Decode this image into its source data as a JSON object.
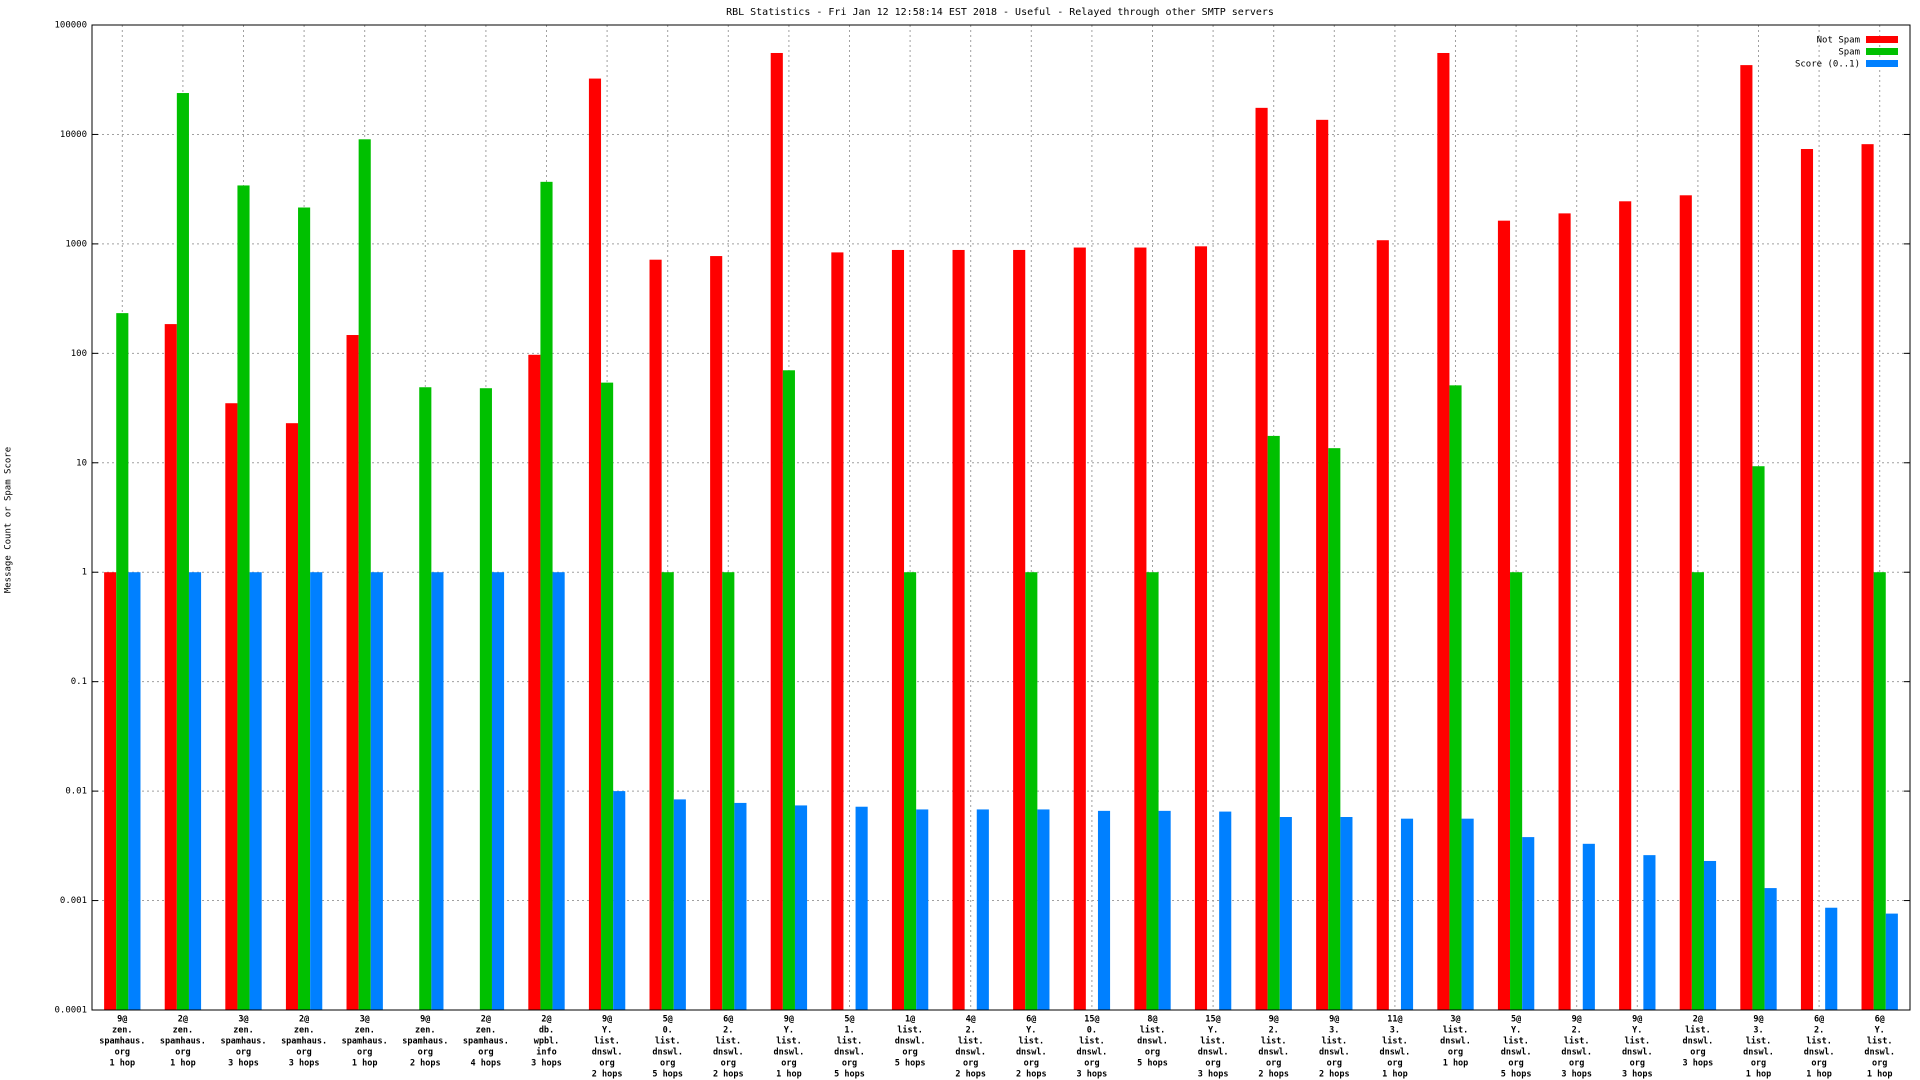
{
  "chart_data": {
    "type": "bar",
    "title": "RBL Statistics - Fri Jan 12 12:58:14 EST 2018 - Useful - Relayed through other SMTP servers",
    "y_label": "Message Count or Spam Score",
    "log_y": true,
    "grid": true,
    "legend": "top-right",
    "ylim": [
      0.0001,
      100000
    ],
    "yticks": [
      0.0001,
      0.001,
      0.01,
      0.1,
      1,
      10,
      100,
      1000,
      10000,
      100000
    ],
    "categories": [
      [
        "9@",
        "zen.",
        "spamhaus.",
        "org",
        "1 hop"
      ],
      [
        "2@",
        "zen.",
        "spamhaus.",
        "org",
        "1 hop"
      ],
      [
        "3@",
        "zen.",
        "spamhaus.",
        "org",
        "3 hops"
      ],
      [
        "2@",
        "zen.",
        "spamhaus.",
        "org",
        "3 hops"
      ],
      [
        "3@",
        "zen.",
        "spamhaus.",
        "org",
        "1 hop"
      ],
      [
        "9@",
        "zen.",
        "spamhaus.",
        "org",
        "2 hops"
      ],
      [
        "2@",
        "zen.",
        "spamhaus.",
        "org",
        "4 hops"
      ],
      [
        "2@",
        "db.",
        "wpbl.",
        "info",
        "3 hops"
      ],
      [
        "9@",
        "Y.",
        "list.",
        "dnswl.",
        "org",
        "2 hops"
      ],
      [
        "5@",
        "0.",
        "list.",
        "dnswl.",
        "org",
        "5 hops"
      ],
      [
        "6@",
        "2.",
        "list.",
        "dnswl.",
        "org",
        "2 hops"
      ],
      [
        "9@",
        "Y.",
        "list.",
        "dnswl.",
        "org",
        "1 hop"
      ],
      [
        "5@",
        "1.",
        "list.",
        "dnswl.",
        "org",
        "5 hops"
      ],
      [
        "1@",
        "list.",
        "dnswl.",
        "org",
        "5 hops"
      ],
      [
        "4@",
        "2.",
        "list.",
        "dnswl.",
        "org",
        "2 hops"
      ],
      [
        "6@",
        "Y.",
        "list.",
        "dnswl.",
        "org",
        "2 hops"
      ],
      [
        "15@",
        "0.",
        "list.",
        "dnswl.",
        "org",
        "3 hops"
      ],
      [
        "8@",
        "list.",
        "dnswl.",
        "org",
        "5 hops"
      ],
      [
        "15@",
        "Y.",
        "list.",
        "dnswl.",
        "org",
        "3 hops"
      ],
      [
        "9@",
        "2.",
        "list.",
        "dnswl.",
        "org",
        "2 hops"
      ],
      [
        "9@",
        "3.",
        "list.",
        "dnswl.",
        "org",
        "2 hops"
      ],
      [
        "11@",
        "3.",
        "list.",
        "dnswl.",
        "org",
        "1 hop"
      ],
      [
        "3@",
        "list.",
        "dnswl.",
        "org",
        "1 hop"
      ],
      [
        "5@",
        "Y.",
        "list.",
        "dnswl.",
        "org",
        "5 hops"
      ],
      [
        "9@",
        "2.",
        "list.",
        "dnswl.",
        "org",
        "3 hops"
      ],
      [
        "9@",
        "Y.",
        "list.",
        "dnswl.",
        "org",
        "3 hops"
      ],
      [
        "2@",
        "list.",
        "dnswl.",
        "org",
        "3 hops"
      ],
      [
        "9@",
        "3.",
        "list.",
        "dnswl.",
        "org",
        "1 hop"
      ],
      [
        "6@",
        "2.",
        "list.",
        "dnswl.",
        "org",
        "1 hop"
      ],
      [
        "6@",
        "Y.",
        "list.",
        "dnswl.",
        "org",
        "1 hop"
      ]
    ],
    "series": [
      {
        "name": "Not Spam",
        "color": "#ff0000",
        "values": [
          1,
          185,
          35,
          23,
          147,
          null,
          null,
          97,
          32400,
          717,
          774,
          55500,
          836,
          880,
          880,
          880,
          926,
          926,
          950,
          17500,
          13600,
          1080,
          55500,
          1630,
          1900,
          2450,
          2780,
          43000,
          7360,
          8150
        ]
      },
      {
        "name": "Spam",
        "color": "#00c000",
        "values": [
          233,
          23900,
          3420,
          2150,
          9030,
          49,
          48,
          3690,
          54,
          1,
          1,
          70,
          null,
          1,
          null,
          1,
          null,
          1,
          null,
          17.6,
          13.6,
          null,
          51,
          1,
          null,
          null,
          1,
          9.3,
          null,
          1
        ]
      },
      {
        "name": "Score (0..1)",
        "color": "#0080ff",
        "values": [
          1,
          1,
          1,
          1,
          1,
          1,
          1,
          1,
          0.01,
          0.0084,
          0.0078,
          0.0074,
          0.0072,
          0.0068,
          0.0068,
          0.0068,
          0.0066,
          0.0066,
          0.0065,
          0.0058,
          0.0058,
          0.0056,
          0.0056,
          0.0038,
          0.0033,
          0.0026,
          0.0023,
          0.0013,
          0.00086,
          0.00076
        ]
      }
    ]
  }
}
